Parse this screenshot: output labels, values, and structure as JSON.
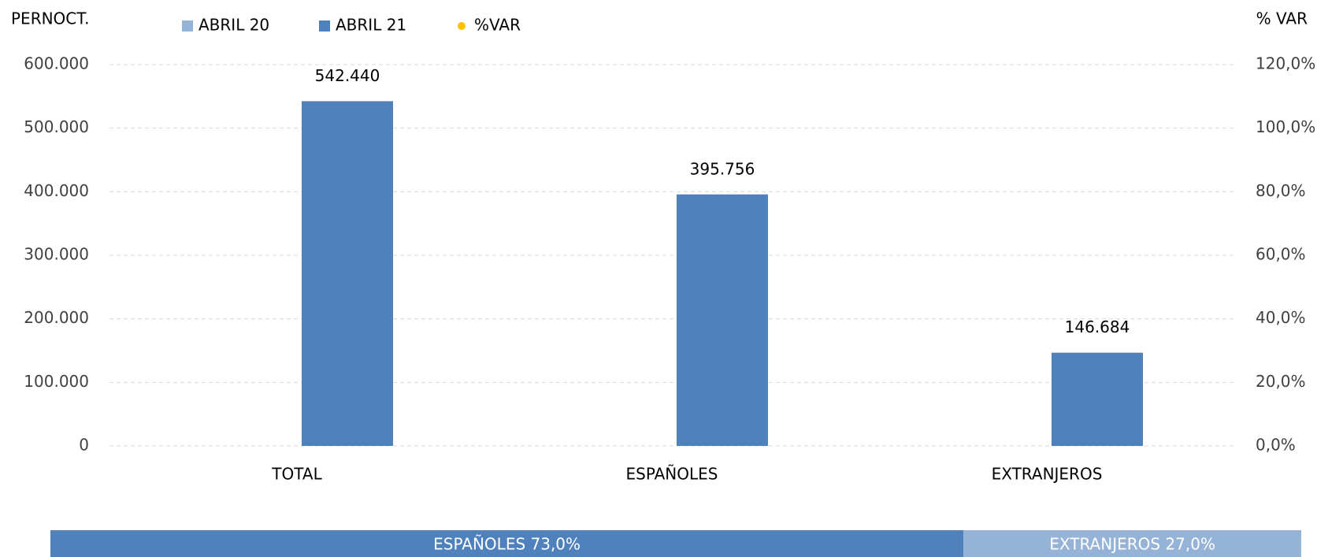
{
  "chart_data": {
    "type": "bar",
    "y_axis_title": "PERNOCT.",
    "y2_axis_title": "% VAR",
    "categories": [
      "TOTAL",
      "ESPAÑOLES",
      "EXTRANJEROS"
    ],
    "series": [
      {
        "name": "ABRIL 20",
        "color": "#95b3d7",
        "values": [
          null,
          null,
          null
        ]
      },
      {
        "name": "ABRIL 21",
        "color": "#4f81bd",
        "values": [
          542440,
          395756,
          146684
        ],
        "value_labels": [
          "542.440",
          "395.756",
          "146.684"
        ]
      },
      {
        "name": "%VAR",
        "color": "#ffc000",
        "axis": "y2",
        "values": [
          null,
          null,
          null
        ]
      }
    ],
    "ylim": [
      0,
      600000
    ],
    "yticks": [
      0,
      {
        "value": 100000,
        "label": "100.000"
      },
      {
        "value": 200000,
        "label": "200.000"
      },
      {
        "value": 300000,
        "label": "300.000"
      },
      {
        "value": 400000,
        "label": "400.000"
      },
      {
        "value": 500000,
        "label": "500.000"
      },
      {
        "value": 600000,
        "label": "600.000"
      }
    ],
    "y2lim": [
      0,
      120
    ],
    "y2ticks": [
      {
        "value": 0,
        "label": "0,0%"
      },
      {
        "value": 20,
        "label": "20,0%"
      },
      {
        "value": 40,
        "label": "40,0%"
      },
      {
        "value": 60,
        "label": "60,0%"
      },
      {
        "value": 80,
        "label": "80,0%"
      },
      {
        "value": 100,
        "label": "100,0%"
      },
      {
        "value": 120,
        "label": "120,0%"
      }
    ],
    "grid": true,
    "legend": "top",
    "share_bar": {
      "segments": [
        {
          "label": "ESPAÑOLES 73,0%",
          "value": 73.0,
          "color": "#4f81bd"
        },
        {
          "label": "EXTRANJEROS 27,0%",
          "value": 27.0,
          "color": "#95b3d7"
        }
      ]
    }
  }
}
